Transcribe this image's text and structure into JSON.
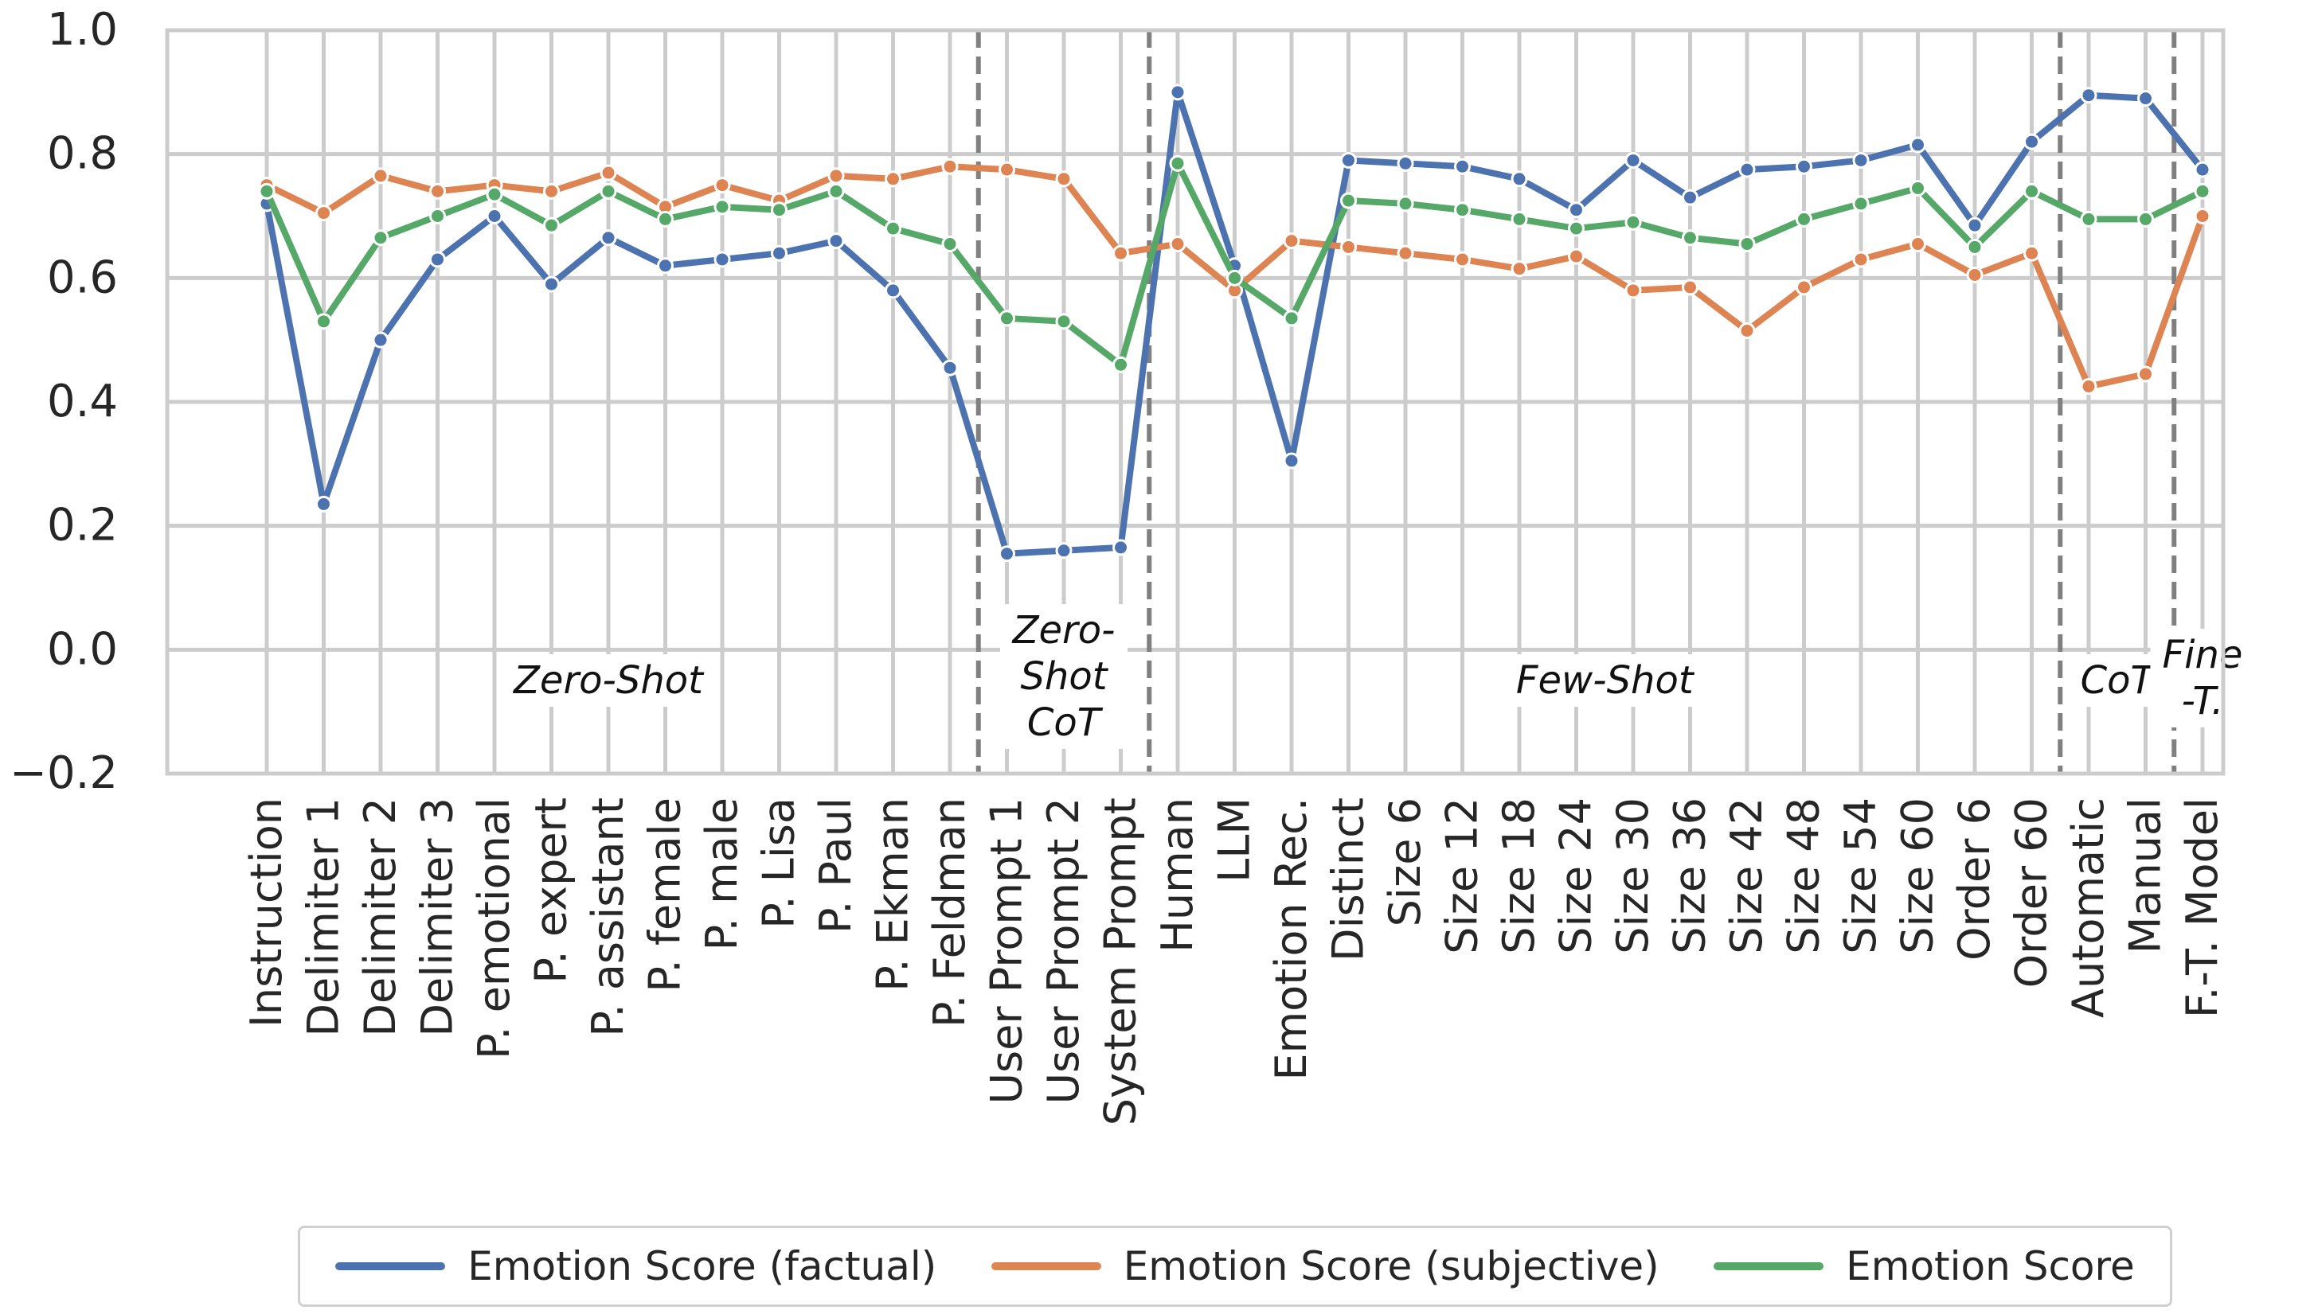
{
  "chart_data": {
    "type": "line",
    "title": "",
    "xlabel": "",
    "ylabel": "",
    "ylim": [
      -0.2,
      1.0
    ],
    "yticks": [
      "−0.2",
      "0.0",
      "0.2",
      "0.4",
      "0.6",
      "0.8",
      "1.0"
    ],
    "grid": true,
    "legend_position": "bottom",
    "categories": [
      "Instruction",
      "Delimiter 1",
      "Delimiter 2",
      "Delimiter 3",
      "P. emotional",
      "P. expert",
      "P. assistant",
      "P. female",
      "P. male",
      "P. Lisa",
      "P. Paul",
      "P. Ekman",
      "P. Feldman",
      "User Prompt 1",
      "User Prompt 2",
      "System Prompt",
      "Human",
      "LLM",
      "Emotion Rec.",
      "Distinct",
      "Size 6",
      "Size 12",
      "Size 18",
      "Size 24",
      "Size 30",
      "Size 36",
      "Size 42",
      "Size 48",
      "Size 54",
      "Size 60",
      "Order 6",
      "Order 60",
      "Automatic",
      "Manual",
      "F.-T. Model"
    ],
    "series": [
      {
        "name": "Emotion Score (factual)",
        "color": "#4c72b0",
        "values": [
          0.72,
          0.235,
          0.5,
          0.63,
          0.7,
          0.59,
          0.665,
          0.62,
          0.63,
          0.64,
          0.66,
          0.58,
          0.455,
          0.155,
          0.16,
          0.165,
          0.9,
          0.62,
          0.305,
          0.79,
          0.785,
          0.78,
          0.76,
          0.71,
          0.79,
          0.73,
          0.775,
          0.78,
          0.79,
          0.815,
          0.685,
          0.82,
          0.895,
          0.89,
          0.775
        ]
      },
      {
        "name": "Emotion Score (subjective)",
        "color": "#dd8452",
        "values": [
          0.75,
          0.705,
          0.765,
          0.74,
          0.75,
          0.74,
          0.77,
          0.715,
          0.75,
          0.725,
          0.765,
          0.76,
          0.78,
          0.775,
          0.76,
          0.64,
          0.655,
          0.58,
          0.66,
          0.65,
          0.64,
          0.63,
          0.615,
          0.635,
          0.58,
          0.585,
          0.515,
          0.585,
          0.63,
          0.655,
          0.605,
          0.64,
          0.425,
          0.445,
          0.7
        ]
      },
      {
        "name": "Emotion Score",
        "color": "#55a868",
        "values": [
          0.74,
          0.53,
          0.665,
          0.7,
          0.735,
          0.685,
          0.74,
          0.695,
          0.715,
          0.71,
          0.74,
          0.68,
          0.655,
          0.535,
          0.53,
          0.46,
          0.785,
          0.6,
          0.535,
          0.725,
          0.72,
          0.71,
          0.695,
          0.68,
          0.69,
          0.665,
          0.655,
          0.695,
          0.72,
          0.745,
          0.65,
          0.74,
          0.695,
          0.695,
          0.74
        ]
      }
    ],
    "group_dividers_after": [
      "P. Feldman",
      "System Prompt",
      "Order 60",
      "Manual"
    ],
    "groups": [
      {
        "label": "Zero-Shot",
        "from": "Instruction",
        "to": "P. Feldman"
      },
      {
        "label": "Zero-Shot CoT",
        "from": "User Prompt 1",
        "to": "System Prompt"
      },
      {
        "label": "Few-Shot",
        "from": "Human",
        "to": "Order 60"
      },
      {
        "label": "CoT",
        "from": "Automatic",
        "to": "Manual"
      },
      {
        "label": "Fine -T.",
        "from": "F.-T. Model",
        "to": "F.-T. Model"
      }
    ],
    "group_label_lines": [
      [
        "Zero-Shot"
      ],
      [
        "Zero-",
        "Shot",
        "CoT"
      ],
      [
        "Few-Shot"
      ],
      [
        "CoT"
      ],
      [
        "Fine",
        "-T."
      ]
    ]
  }
}
